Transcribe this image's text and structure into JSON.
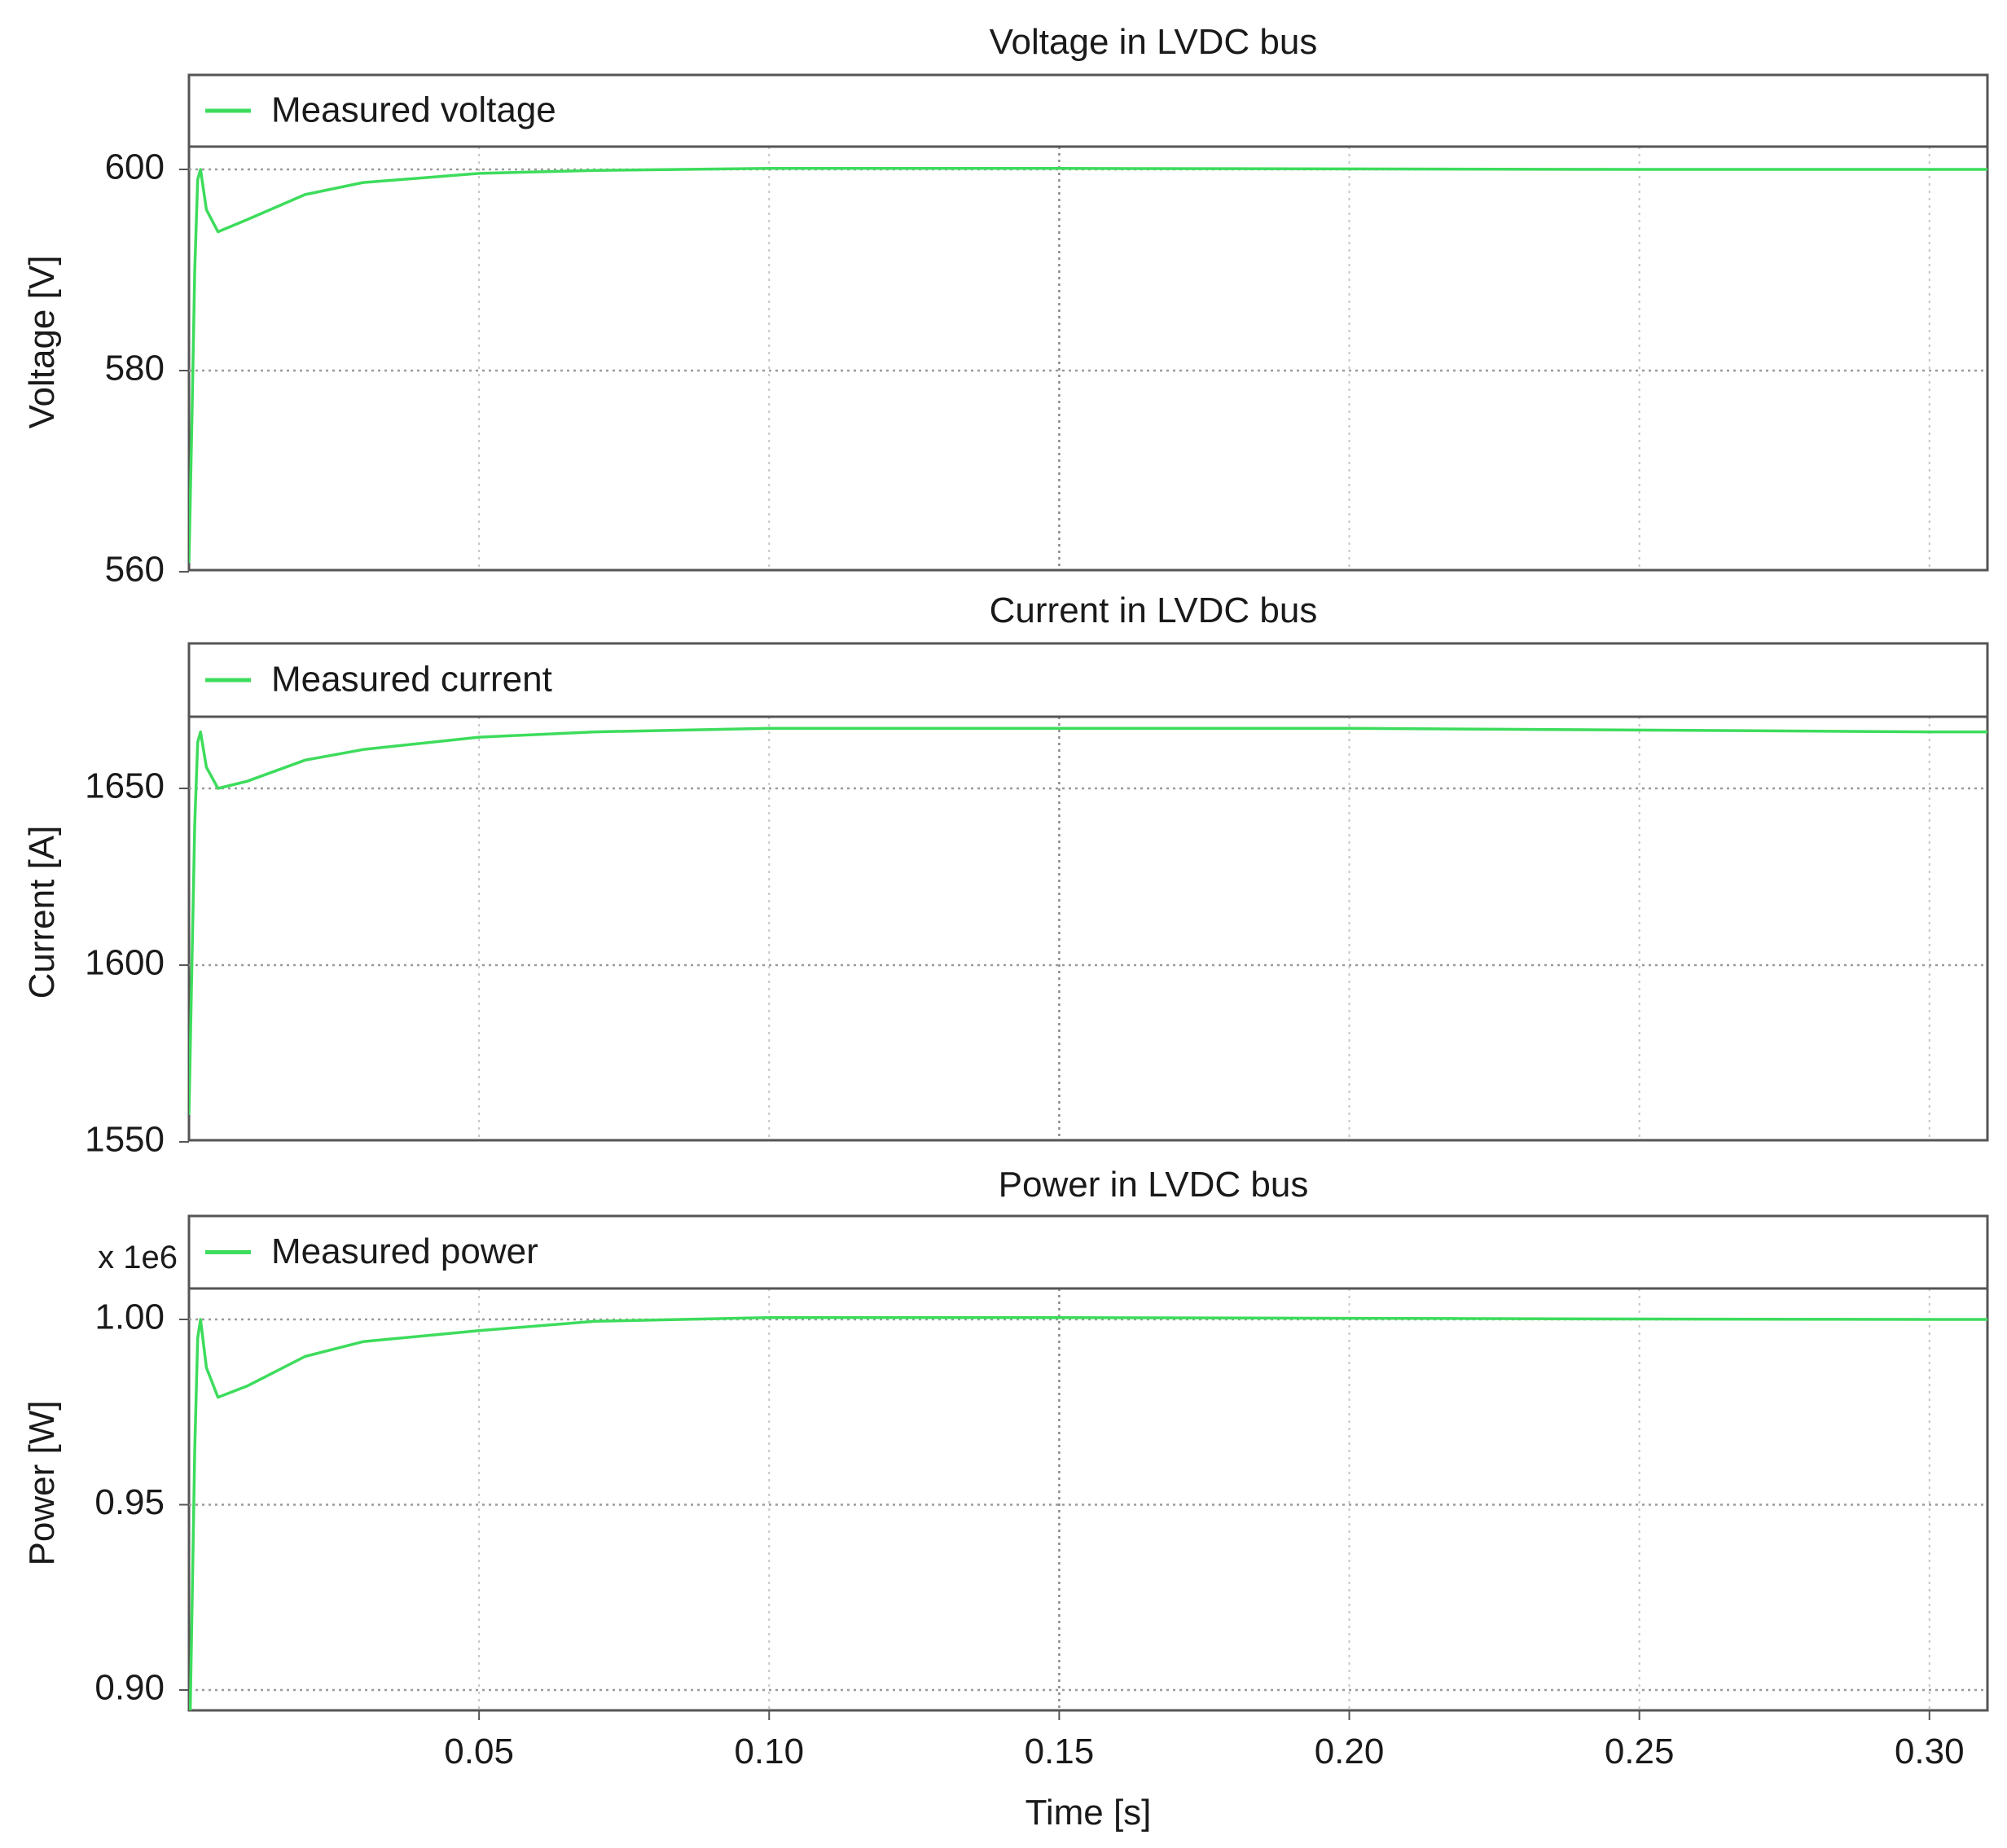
{
  "chart_data": [
    {
      "type": "line",
      "title": "Voltage in LVDC bus",
      "ylabel": "Voltage [V]",
      "xlabel": "",
      "xlim": [
        0,
        0.31
      ],
      "ylim": [
        560,
        610
      ],
      "yticks": [
        "600",
        "580",
        "560"
      ],
      "ytick_values": [
        600,
        580,
        560
      ],
      "multiplier": "",
      "grid": true,
      "legend_position": "top",
      "series": [
        {
          "name": "Measured voltage",
          "color": "#3ddc5c",
          "x": [
            0,
            0.0005,
            0.001,
            0.0015,
            0.002,
            0.003,
            0.005,
            0.01,
            0.02,
            0.03,
            0.05,
            0.07,
            0.1,
            0.15,
            0.2,
            0.25,
            0.3,
            0.31
          ],
          "y": [
            561,
            575,
            590,
            599,
            600,
            596,
            593.8,
            595,
            597.5,
            598.7,
            599.6,
            599.9,
            600.1,
            600.1,
            600.05,
            600.0,
            600.0,
            600.0
          ]
        }
      ]
    },
    {
      "type": "line",
      "title": "Current in LVDC bus",
      "ylabel": "Current [A]",
      "xlabel": "",
      "xlim": [
        0,
        0.31
      ],
      "ylim": [
        1550,
        1685
      ],
      "yticks": [
        "1650",
        "1600",
        "1550"
      ],
      "ytick_values": [
        1650,
        1600,
        1550
      ],
      "multiplier": "",
      "grid": true,
      "legend_position": "top",
      "series": [
        {
          "name": "Measured current",
          "color": "#3ddc5c",
          "x": [
            0,
            0.0005,
            0.001,
            0.0015,
            0.002,
            0.003,
            0.005,
            0.01,
            0.02,
            0.03,
            0.05,
            0.07,
            0.1,
            0.15,
            0.2,
            0.25,
            0.3,
            0.31
          ],
          "y": [
            1558,
            1600,
            1640,
            1663,
            1666,
            1656,
            1650,
            1652,
            1658,
            1661,
            1664.5,
            1666,
            1667,
            1667,
            1667,
            1666.5,
            1666,
            1666
          ]
        }
      ]
    },
    {
      "type": "line",
      "title": "Power in LVDC bus",
      "ylabel": "Power [W]",
      "xlabel": "Time [s]",
      "xlim": [
        0,
        0.31
      ],
      "ylim": [
        0.87,
        1.01
      ],
      "xticks": [
        "0.05",
        "0.10",
        "0.15",
        "0.20",
        "0.25",
        "0.30"
      ],
      "xtick_values": [
        0.05,
        0.1,
        0.15,
        0.2,
        0.25,
        0.3
      ],
      "yticks": [
        "1.00",
        "0.95",
        "0.90"
      ],
      "ytick_values": [
        1.0,
        0.95,
        0.9
      ],
      "multiplier": "x 1e6",
      "grid": true,
      "legend_position": "top",
      "series": [
        {
          "name": "Measured power",
          "color": "#3ddc5c",
          "x": [
            0,
            0.0005,
            0.001,
            0.0015,
            0.002,
            0.003,
            0.005,
            0.01,
            0.02,
            0.03,
            0.05,
            0.07,
            0.1,
            0.15,
            0.2,
            0.25,
            0.3,
            0.31
          ],
          "y": [
            0.875,
            0.92,
            0.965,
            0.995,
            1.0,
            0.987,
            0.979,
            0.982,
            0.99,
            0.994,
            0.997,
            0.9995,
            1.0005,
            1.0005,
            1.0003,
            1.0001,
            1.0,
            1.0
          ]
        }
      ]
    }
  ]
}
